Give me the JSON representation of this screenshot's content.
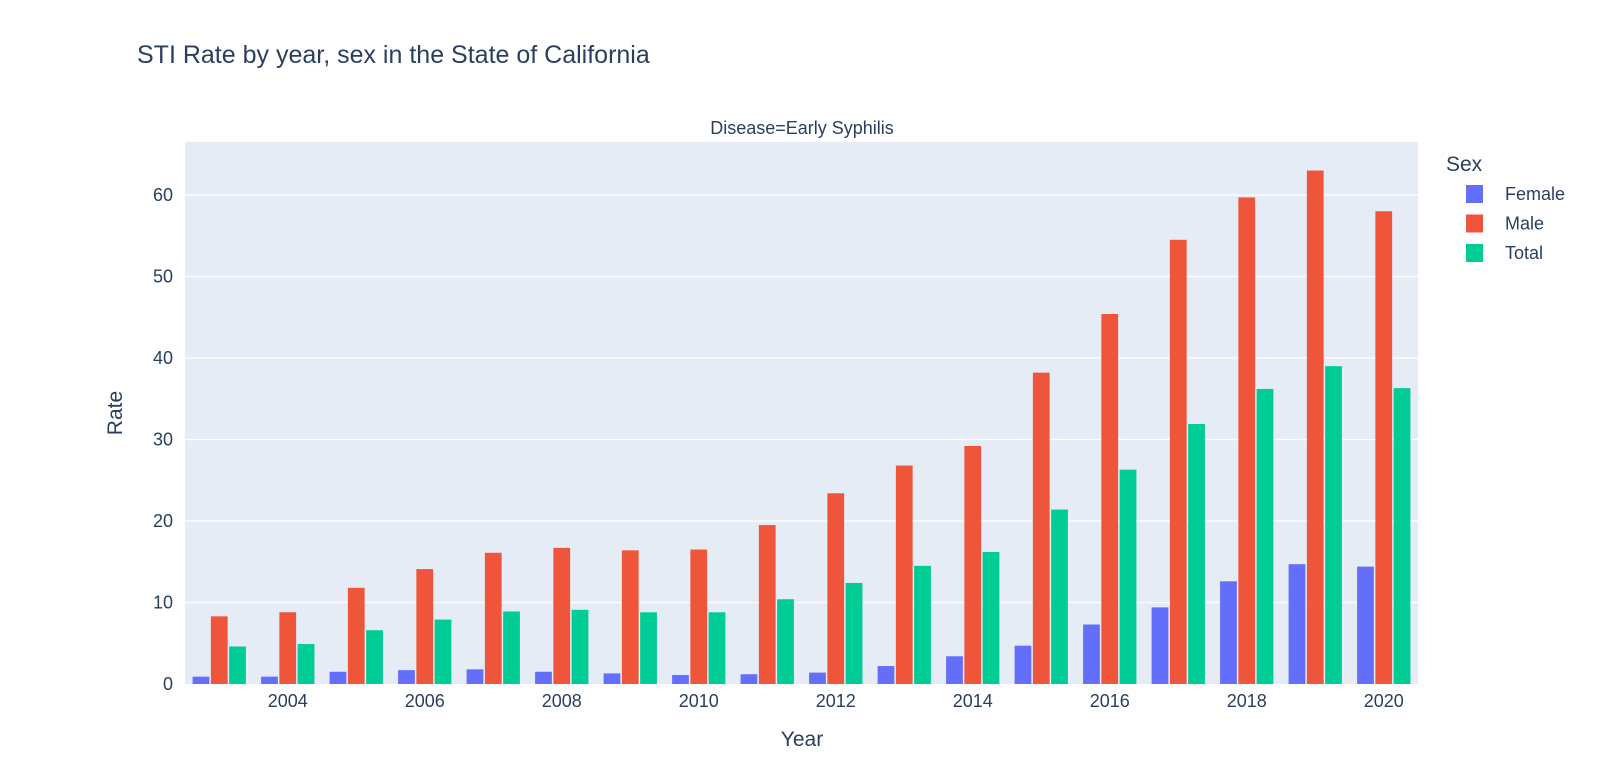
{
  "chart_data": {
    "type": "bar",
    "title": "STI Rate by year, sex in the State of California",
    "subtitle": "Disease=Early Syphilis",
    "xlabel": "Year",
    "ylabel": "Rate",
    "x": [
      2003,
      2004,
      2005,
      2006,
      2007,
      2008,
      2009,
      2010,
      2011,
      2012,
      2013,
      2014,
      2015,
      2016,
      2017,
      2018,
      2019,
      2020
    ],
    "x_ticks": [
      2004,
      2006,
      2008,
      2010,
      2012,
      2014,
      2016,
      2018,
      2020
    ],
    "x_tick_labels": [
      "2004",
      "2006",
      "2008",
      "2010",
      "2012",
      "2014",
      "2016",
      "2018",
      "2020"
    ],
    "y_ticks": [
      0,
      10,
      20,
      30,
      40,
      50,
      60
    ],
    "y_tick_labels": [
      "0",
      "10",
      "20",
      "30",
      "40",
      "50",
      "60"
    ],
    "ylim": [
      0,
      66.5
    ],
    "grid": true,
    "legend_title": "Sex",
    "legend_position": "right",
    "series": [
      {
        "name": "Female",
        "color": "#636efa",
        "values": [
          0.9,
          0.9,
          1.5,
          1.7,
          1.8,
          1.5,
          1.3,
          1.1,
          1.2,
          1.4,
          2.2,
          3.4,
          4.7,
          7.3,
          9.4,
          12.6,
          14.7,
          14.4
        ]
      },
      {
        "name": "Male",
        "color": "#ef553b",
        "values": [
          8.3,
          8.8,
          11.8,
          14.1,
          16.1,
          16.7,
          16.4,
          16.5,
          19.5,
          23.4,
          26.8,
          29.2,
          38.2,
          45.4,
          54.5,
          59.7,
          63.0,
          58.0
        ]
      },
      {
        "name": "Total",
        "color": "#00cc96",
        "values": [
          4.6,
          4.9,
          6.6,
          7.9,
          8.9,
          9.1,
          8.8,
          8.8,
          10.4,
          12.4,
          14.5,
          16.2,
          21.4,
          26.3,
          31.9,
          36.2,
          39.0,
          36.3
        ]
      }
    ],
    "plot_background": "#e5ecf6",
    "text_color": "#2a3f5f"
  }
}
